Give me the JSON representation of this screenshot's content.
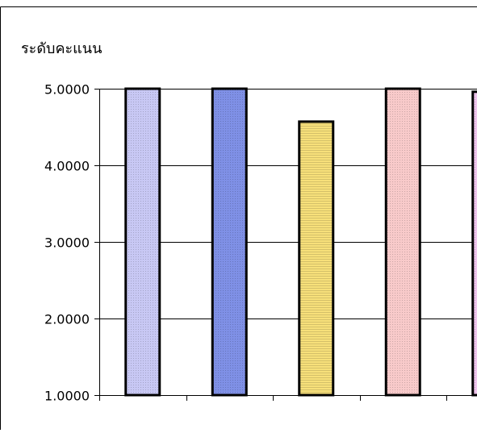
{
  "chart_data": {
    "type": "bar",
    "title": "",
    "ylabel": "ระดับคะแนน",
    "xlabel": "",
    "ylim": [
      1,
      5
    ],
    "yticks": [
      "1.0000",
      "2.0000",
      "3.0000",
      "4.0000",
      "5.0000"
    ],
    "categories": [
      "",
      "",
      "",
      "",
      ""
    ],
    "values": [
      5.0,
      5.0,
      4.57,
      5.0,
      4.96
    ],
    "grid": true,
    "bar_colors": [
      "#c8c8f4",
      "#7f90e6",
      "#f7e07a",
      "#f8caca",
      "#f0c6ee"
    ],
    "bar_outline": "#000000"
  }
}
